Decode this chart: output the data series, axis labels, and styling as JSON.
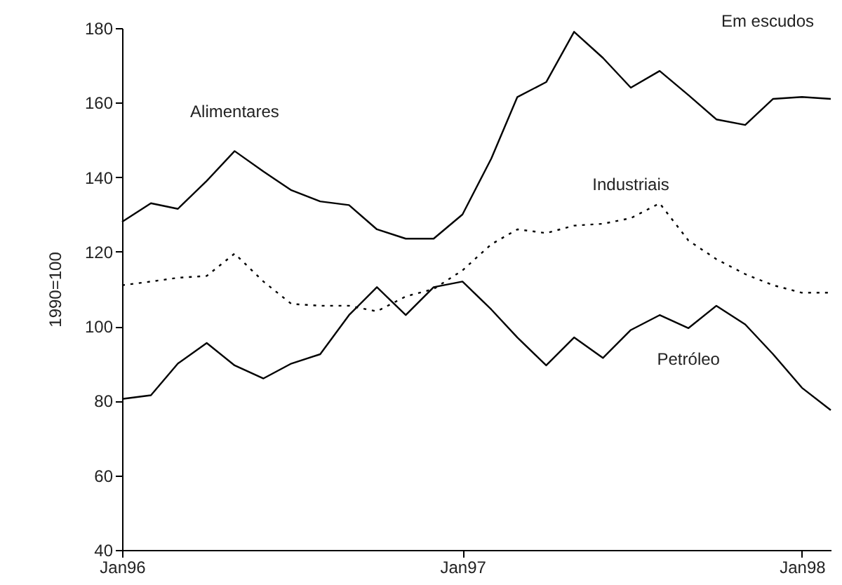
{
  "chart_data": {
    "type": "line",
    "subtitle": "Em escudos",
    "ylabel": "1990=100",
    "x": [
      "1996-01",
      "1996-02",
      "1996-03",
      "1996-04",
      "1996-05",
      "1996-06",
      "1996-07",
      "1996-08",
      "1996-09",
      "1996-10",
      "1996-11",
      "1996-12",
      "1997-01",
      "1997-02",
      "1997-03",
      "1997-04",
      "1997-05",
      "1997-06",
      "1997-07",
      "1997-08",
      "1997-09",
      "1997-10",
      "1997-11",
      "1997-12",
      "1998-01",
      "1998-02"
    ],
    "series": [
      {
        "name": "Alimentares",
        "color": "#000000",
        "line_style": "solid",
        "values": [
          128,
          133,
          131.5,
          139,
          147,
          141.5,
          136.5,
          133.5,
          132.5,
          126,
          123.5,
          123.5,
          130,
          145,
          161.5,
          165.5,
          179,
          172,
          164,
          168.5,
          162,
          155.5,
          154,
          161,
          161.5,
          161
        ]
      },
      {
        "name": "Industriais",
        "color": "#000000",
        "line_style": "dotted",
        "values": [
          111,
          112,
          113,
          113.5,
          119.5,
          112,
          106,
          105.5,
          105.5,
          104,
          108,
          110,
          115,
          122,
          126,
          125,
          127,
          127.5,
          129,
          133,
          123,
          118,
          114,
          111,
          109,
          109
        ]
      },
      {
        "name": "Petróleo",
        "color": "#000000",
        "line_style": "solid",
        "values": [
          80.5,
          81.5,
          90,
          95.5,
          89.5,
          86,
          90,
          92.5,
          103,
          110.5,
          103,
          110.5,
          112,
          104.5,
          97,
          89.5,
          97,
          91.5,
          99,
          103,
          99.5,
          105.5,
          100.5,
          92.5,
          83.5,
          77.5
        ]
      }
    ],
    "xlim": [
      "1996-01",
      "1998-02"
    ],
    "xticks": [
      {
        "value": "1996-01",
        "label": "Jan96"
      },
      {
        "value": "1997-01",
        "label": "Jan97"
      },
      {
        "value": "1998-01",
        "label": "Jan98"
      }
    ],
    "ylim": [
      40,
      180
    ],
    "yticks": [
      40,
      60,
      80,
      100,
      120,
      140,
      160,
      180
    ],
    "grid": false,
    "marker": "none"
  }
}
